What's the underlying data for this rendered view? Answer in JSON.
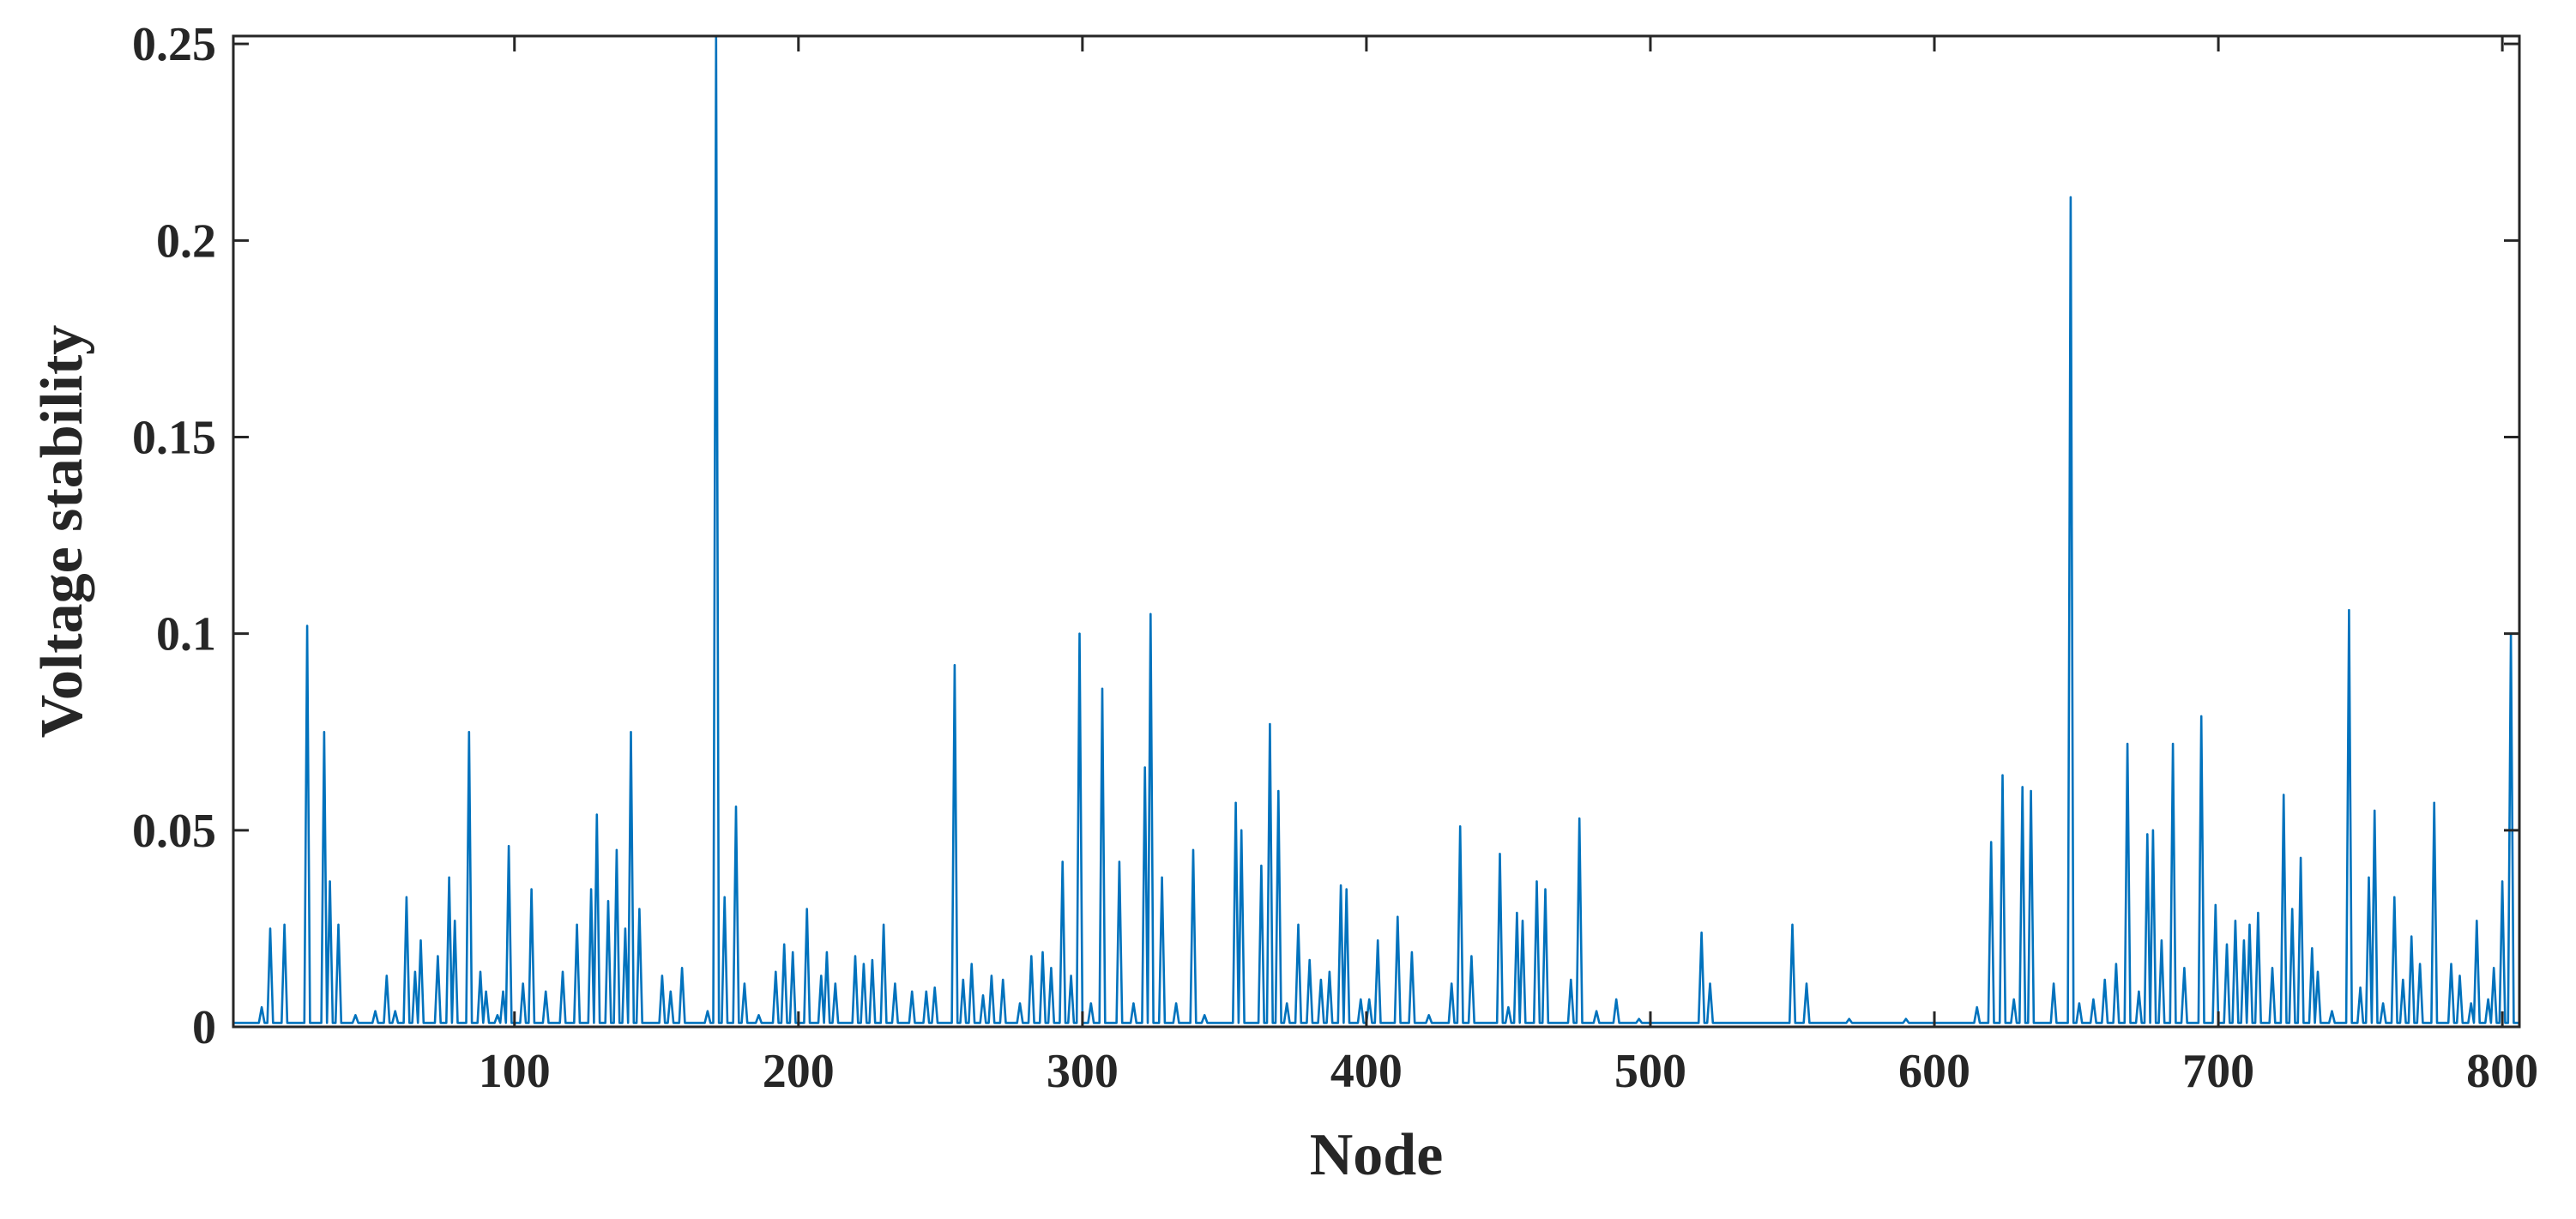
{
  "chart_data": {
    "type": "line",
    "title": "",
    "xlabel": "Node",
    "ylabel": "Voltage stability",
    "xlim": [
      1,
      806
    ],
    "ylim": [
      0,
      0.252
    ],
    "grid": false,
    "legend": "none",
    "series_color": "#0072BD",
    "axis_color": "#262626",
    "x_ticks": [
      100,
      200,
      300,
      400,
      500,
      600,
      700,
      800
    ],
    "x_tick_labels": [
      "100",
      "200",
      "300",
      "400",
      "500",
      "600",
      "700",
      "800"
    ],
    "y_ticks": [
      0,
      0.05,
      0.1,
      0.15,
      0.2,
      0.25
    ],
    "y_tick_labels": [
      "0",
      "0.05",
      "0.1",
      "0.15",
      "0.2",
      "0.25"
    ],
    "series": [
      {
        "baseline": 0.001,
        "peaks": [
          [
            11,
            0.005
          ],
          [
            14,
            0.025
          ],
          [
            19,
            0.026
          ],
          [
            27,
            0.102
          ],
          [
            33,
            0.075
          ],
          [
            35,
            0.037
          ],
          [
            38,
            0.026
          ],
          [
            44,
            0.003
          ],
          [
            51,
            0.004
          ],
          [
            55,
            0.013
          ],
          [
            58,
            0.004
          ],
          [
            62,
            0.033
          ],
          [
            65,
            0.014
          ],
          [
            67,
            0.022
          ],
          [
            73,
            0.018
          ],
          [
            77,
            0.038
          ],
          [
            79,
            0.027
          ],
          [
            84,
            0.075
          ],
          [
            88,
            0.014
          ],
          [
            90,
            0.009
          ],
          [
            94,
            0.003
          ],
          [
            96,
            0.009
          ],
          [
            98,
            0.046
          ],
          [
            103,
            0.011
          ],
          [
            106,
            0.035
          ],
          [
            111,
            0.009
          ],
          [
            117,
            0.014
          ],
          [
            122,
            0.026
          ],
          [
            127,
            0.035
          ],
          [
            129,
            0.054
          ],
          [
            133,
            0.032
          ],
          [
            136,
            0.045
          ],
          [
            139,
            0.025
          ],
          [
            141,
            0.075
          ],
          [
            144,
            0.03
          ],
          [
            152,
            0.013
          ],
          [
            155,
            0.009
          ],
          [
            159,
            0.015
          ],
          [
            168,
            0.004
          ],
          [
            171,
            0.252
          ],
          [
            174,
            0.033
          ],
          [
            178,
            0.056
          ],
          [
            181,
            0.011
          ],
          [
            186,
            0.003
          ],
          [
            192,
            0.014
          ],
          [
            195,
            0.021
          ],
          [
            198,
            0.019
          ],
          [
            203,
            0.03
          ],
          [
            208,
            0.013
          ],
          [
            210,
            0.019
          ],
          [
            213,
            0.011
          ],
          [
            220,
            0.018
          ],
          [
            223,
            0.016
          ],
          [
            226,
            0.017
          ],
          [
            230,
            0.026
          ],
          [
            234,
            0.011
          ],
          [
            240,
            0.009
          ],
          [
            245,
            0.009
          ],
          [
            248,
            0.01
          ],
          [
            255,
            0.092
          ],
          [
            258,
            0.012
          ],
          [
            261,
            0.016
          ],
          [
            265,
            0.008
          ],
          [
            268,
            0.013
          ],
          [
            272,
            0.012
          ],
          [
            278,
            0.006
          ],
          [
            282,
            0.018
          ],
          [
            286,
            0.019
          ],
          [
            289,
            0.015
          ],
          [
            293,
            0.042
          ],
          [
            296,
            0.013
          ],
          [
            299,
            0.1
          ],
          [
            303,
            0.006
          ],
          [
            307,
            0.086
          ],
          [
            313,
            0.042
          ],
          [
            318,
            0.006
          ],
          [
            322,
            0.066
          ],
          [
            324,
            0.105
          ],
          [
            328,
            0.038
          ],
          [
            333,
            0.006
          ],
          [
            339,
            0.045
          ],
          [
            343,
            0.003
          ],
          [
            354,
            0.057
          ],
          [
            356,
            0.05
          ],
          [
            363,
            0.041
          ],
          [
            366,
            0.077
          ],
          [
            369,
            0.06
          ],
          [
            372,
            0.006
          ],
          [
            376,
            0.026
          ],
          [
            380,
            0.017
          ],
          [
            384,
            0.012
          ],
          [
            387,
            0.014
          ],
          [
            391,
            0.036
          ],
          [
            393,
            0.035
          ],
          [
            398,
            0.007
          ],
          [
            401,
            0.007
          ],
          [
            404,
            0.022
          ],
          [
            411,
            0.028
          ],
          [
            416,
            0.019
          ],
          [
            422,
            0.003
          ],
          [
            430,
            0.011
          ],
          [
            433,
            0.051
          ],
          [
            437,
            0.018
          ],
          [
            447,
            0.044
          ],
          [
            450,
            0.005
          ],
          [
            453,
            0.029
          ],
          [
            455,
            0.027
          ],
          [
            460,
            0.037
          ],
          [
            463,
            0.035
          ],
          [
            472,
            0.012
          ],
          [
            475,
            0.053
          ],
          [
            481,
            0.004
          ],
          [
            488,
            0.007
          ],
          [
            496,
            0.002
          ],
          [
            518,
            0.024
          ],
          [
            521,
            0.011
          ],
          [
            550,
            0.026
          ],
          [
            555,
            0.011
          ],
          [
            570,
            0.002
          ],
          [
            590,
            0.002
          ],
          [
            615,
            0.005
          ],
          [
            620,
            0.047
          ],
          [
            624,
            0.064
          ],
          [
            628,
            0.007
          ],
          [
            631,
            0.061
          ],
          [
            634,
            0.06
          ],
          [
            642,
            0.011
          ],
          [
            648,
            0.211
          ],
          [
            651,
            0.006
          ],
          [
            656,
            0.007
          ],
          [
            660,
            0.012
          ],
          [
            664,
            0.016
          ],
          [
            668,
            0.072
          ],
          [
            672,
            0.009
          ],
          [
            675,
            0.049
          ],
          [
            677,
            0.05
          ],
          [
            680,
            0.022
          ],
          [
            684,
            0.072
          ],
          [
            688,
            0.015
          ],
          [
            694,
            0.079
          ],
          [
            699,
            0.031
          ],
          [
            703,
            0.021
          ],
          [
            706,
            0.027
          ],
          [
            709,
            0.022
          ],
          [
            711,
            0.026
          ],
          [
            714,
            0.029
          ],
          [
            719,
            0.015
          ],
          [
            723,
            0.059
          ],
          [
            726,
            0.03
          ],
          [
            729,
            0.043
          ],
          [
            733,
            0.02
          ],
          [
            735,
            0.014
          ],
          [
            740,
            0.004
          ],
          [
            746,
            0.106
          ],
          [
            750,
            0.01
          ],
          [
            753,
            0.038
          ],
          [
            755,
            0.055
          ],
          [
            758,
            0.006
          ],
          [
            762,
            0.033
          ],
          [
            765,
            0.012
          ],
          [
            768,
            0.023
          ],
          [
            771,
            0.016
          ],
          [
            776,
            0.057
          ],
          [
            782,
            0.016
          ],
          [
            785,
            0.013
          ],
          [
            789,
            0.006
          ],
          [
            791,
            0.027
          ],
          [
            795,
            0.007
          ],
          [
            797,
            0.015
          ],
          [
            800,
            0.037
          ],
          [
            803,
            0.1
          ]
        ]
      }
    ]
  }
}
